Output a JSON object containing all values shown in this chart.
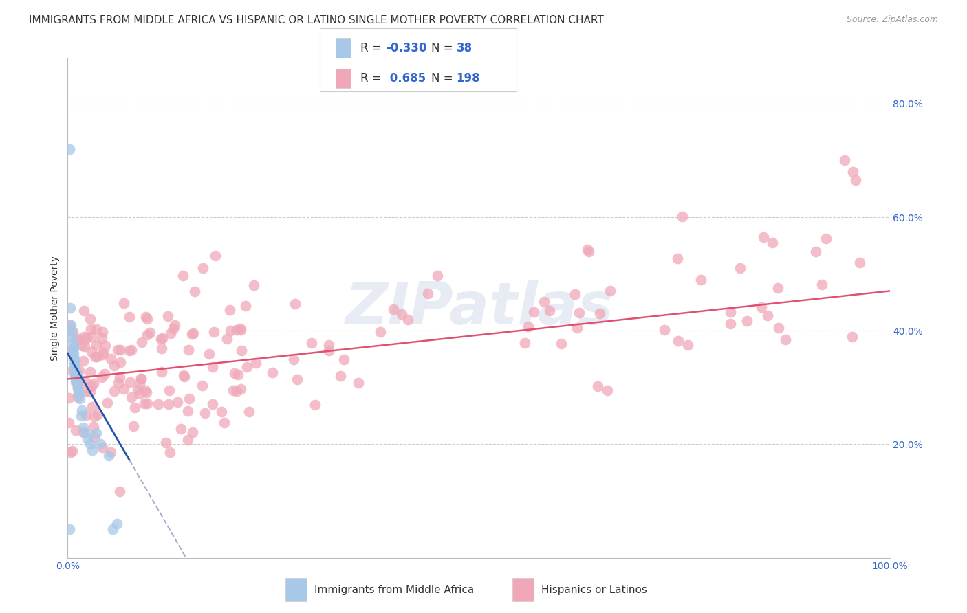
{
  "title": "IMMIGRANTS FROM MIDDLE AFRICA VS HISPANIC OR LATINO SINGLE MOTHER POVERTY CORRELATION CHART",
  "source": "Source: ZipAtlas.com",
  "ylabel": "Single Mother Poverty",
  "x_min": 0.0,
  "x_max": 1.0,
  "y_min": 0.0,
  "y_max": 0.88,
  "blue_color": "#a8c8e8",
  "pink_color": "#f0a8b8",
  "blue_line_color": "#2255aa",
  "pink_line_color": "#e05070",
  "dash_color": "#aaaacc",
  "blue_R": -0.33,
  "blue_N": 38,
  "pink_R": 0.685,
  "pink_N": 198,
  "legend_label_blue": "Immigrants from Middle Africa",
  "legend_label_pink": "Hispanics or Latinos",
  "watermark": "ZIPatlas",
  "title_fontsize": 11,
  "tick_fontsize": 10,
  "tick_color": "#3366cc",
  "text_color": "#333333",
  "source_color": "#999999",
  "grid_color": "#cccccc",
  "legend_border_color": "#cccccc"
}
